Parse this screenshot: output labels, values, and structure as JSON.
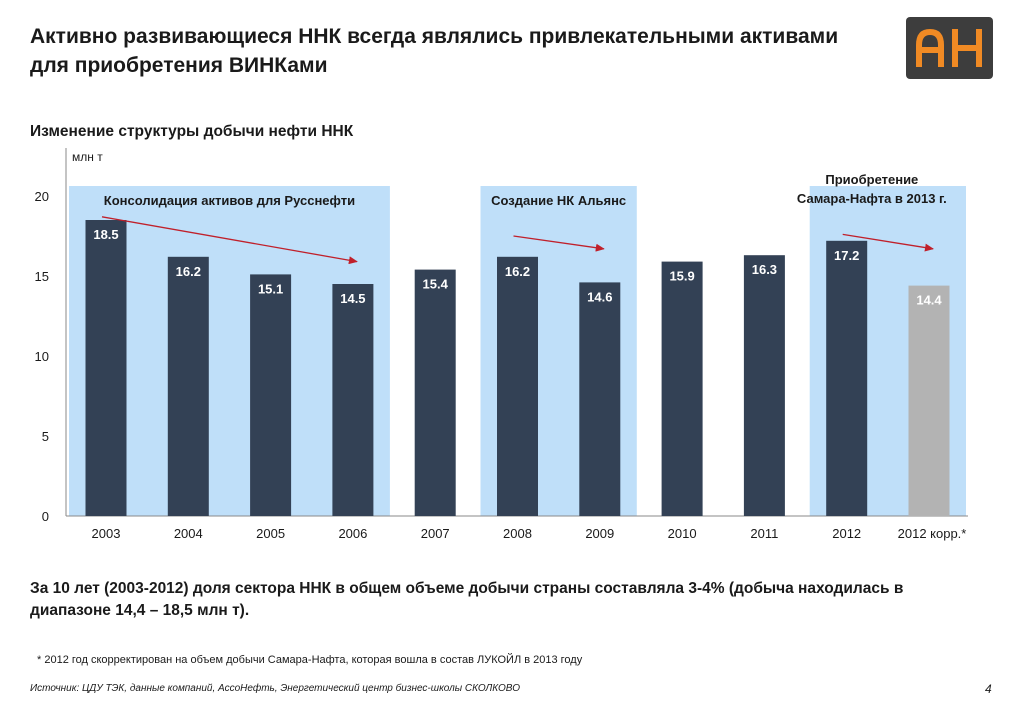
{
  "header": {
    "title": "Активно развивающиеся ННК всегда являлись привлекательными активами для приобретения ВИНКами",
    "logo_text": "АН"
  },
  "subtitle": "Изменение структуры добычи нефти ННК",
  "colors": {
    "bar_dark": "#334155",
    "bar_grey": "#b3b3b3",
    "highlight": "#bfdff9",
    "arrow": "#c0202b",
    "logo_bg": "#3d3d3d",
    "logo_fg": "#f08a24"
  },
  "chart_data": {
    "type": "bar",
    "unit_label": "млн т",
    "categories": [
      "2003",
      "2004",
      "2005",
      "2006",
      "2007",
      "2008",
      "2009",
      "2010",
      "2011",
      "2012",
      "2012 корр.*"
    ],
    "values": [
      18.5,
      16.2,
      15.1,
      14.5,
      15.4,
      16.2,
      14.6,
      15.9,
      16.3,
      17.2,
      14.4
    ],
    "value_labels": [
      "18.5",
      "16.2",
      "15.1",
      "14.5",
      "15.4",
      "16.2",
      "14.6",
      "15.9",
      "16.3",
      "17.2",
      "14.4"
    ],
    "bar_colors": [
      "dark",
      "dark",
      "dark",
      "dark",
      "dark",
      "dark",
      "dark",
      "dark",
      "dark",
      "dark",
      "grey"
    ],
    "ylim": [
      0,
      20
    ],
    "yticks": [
      0,
      5,
      10,
      15,
      20
    ],
    "grid": false,
    "annotations": [
      {
        "text": [
          "Консолидация активов для Русснефти"
        ],
        "span": [
          0,
          3
        ],
        "arrow": [
          [
            0,
            18.7
          ],
          [
            3,
            15.9
          ]
        ]
      },
      {
        "text": [
          "Создание НК Альянс"
        ],
        "span": [
          5,
          6
        ],
        "arrow": [
          [
            5,
            17.5
          ],
          [
            6,
            16.7
          ]
        ]
      },
      {
        "text": [
          "Приобретение",
          "Самара-Нафта в 2013 г."
        ],
        "span": [
          9,
          10
        ],
        "arrow": [
          [
            9,
            17.6
          ],
          [
            10,
            16.7
          ]
        ]
      }
    ]
  },
  "summary": "За 10 лет (2003-2012) доля сектора ННК в общем объеме добычи страны составляла 3-4% (добыча находилась в диапазоне 14,4 – 18,5 млн т).",
  "footnote": "* 2012 год скорректирован на объем добычи Самара-Нафта, которая вошла в состав ЛУКОЙЛ в 2013 году",
  "source": "Источник: ЦДУ ТЭК, данные компаний, АссоНефть, Энергетический центр бизнес-школы СКОЛКОВО",
  "page_number": "4"
}
